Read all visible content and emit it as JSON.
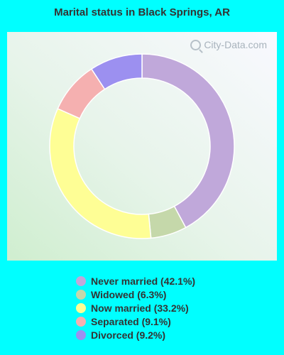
{
  "title": "Marital status in Black Springs, AR",
  "watermark": "City-Data.com",
  "chart_data": {
    "type": "pie",
    "style": "donut",
    "title": "Marital status in Black Springs, AR",
    "legend_placement": "bottom",
    "slices": [
      {
        "label": "Never married (42.1%)",
        "value": 42.1,
        "color": "#c0a8da"
      },
      {
        "label": "Widowed (6.3%)",
        "value": 6.3,
        "color": "#c5d8aa"
      },
      {
        "label": "Now married (33.2%)",
        "value": 33.2,
        "color": "#fefe95"
      },
      {
        "label": "Separated (9.1%)",
        "value": 9.1,
        "color": "#f5b0b0"
      },
      {
        "label": "Divorced (9.2%)",
        "value": 9.2,
        "color": "#9c90f0"
      }
    ]
  }
}
